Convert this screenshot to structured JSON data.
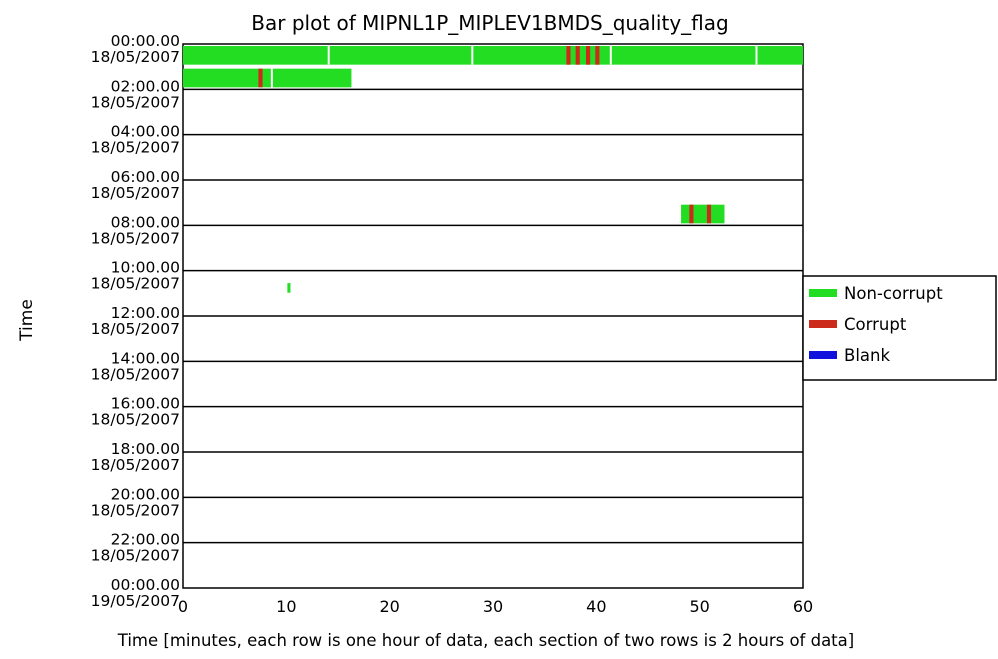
{
  "chart_data": {
    "type": "bar",
    "title": "Bar plot of MIPNL1P_MIPLEV1BMDS_quality_flag",
    "xlabel": "Time [minutes, each row is one hour of data, each section of two rows is 2 hours of data]",
    "ylabel": "Time",
    "xlim": [
      0,
      60
    ],
    "x_ticks": [
      "0",
      "10",
      "20",
      "30",
      "40",
      "50",
      "60"
    ],
    "y_tick_labels": [
      {
        "time": "00:00.00",
        "date": "18/05/2007"
      },
      {
        "time": "02:00.00",
        "date": "18/05/2007"
      },
      {
        "time": "04:00.00",
        "date": "18/05/2007"
      },
      {
        "time": "06:00.00",
        "date": "18/05/2007"
      },
      {
        "time": "08:00.00",
        "date": "18/05/2007"
      },
      {
        "time": "10:00.00",
        "date": "18/05/2007"
      },
      {
        "time": "12:00.00",
        "date": "18/05/2007"
      },
      {
        "time": "14:00.00",
        "date": "18/05/2007"
      },
      {
        "time": "16:00.00",
        "date": "18/05/2007"
      },
      {
        "time": "18:00.00",
        "date": "18/05/2007"
      },
      {
        "time": "20:00.00",
        "date": "18/05/2007"
      },
      {
        "time": "22:00.00",
        "date": "18/05/2007"
      },
      {
        "time": "00:00.00",
        "date": "19/05/2007"
      }
    ],
    "legend": {
      "placement": "right",
      "entries": [
        {
          "label": "Non-corrupt",
          "color": "#22dd22"
        },
        {
          "label": "Corrupt",
          "color": "#cc2a1a"
        },
        {
          "label": "Blank",
          "color": "#1111dd"
        }
      ]
    },
    "rows": [
      {
        "hour": 0,
        "segments": [
          {
            "start": 0,
            "end": 60,
            "status": "Non-corrupt"
          },
          {
            "start": 37.1,
            "end": 37.5,
            "status": "Corrupt"
          },
          {
            "start": 38.0,
            "end": 38.4,
            "status": "Corrupt"
          },
          {
            "start": 39.0,
            "end": 39.4,
            "status": "Corrupt"
          },
          {
            "start": 39.9,
            "end": 40.3,
            "status": "Corrupt"
          }
        ],
        "gaps": [
          14.1,
          28.0,
          41.4,
          55.5
        ]
      },
      {
        "hour": 1,
        "segments": [
          {
            "start": 0,
            "end": 16.3,
            "status": "Non-corrupt"
          },
          {
            "start": 7.3,
            "end": 7.7,
            "status": "Corrupt"
          }
        ],
        "gaps": [
          8.6
        ]
      },
      {
        "hour": 7,
        "segments": [
          {
            "start": 48.2,
            "end": 52.4,
            "status": "Non-corrupt"
          },
          {
            "start": 49.0,
            "end": 49.4,
            "status": "Corrupt"
          },
          {
            "start": 50.7,
            "end": 51.1,
            "status": "Corrupt"
          }
        ],
        "gaps": []
      },
      {
        "hour": 10,
        "segments": [
          {
            "start": 10.1,
            "end": 10.4,
            "status": "Non-corrupt",
            "partial": true
          }
        ],
        "gaps": []
      }
    ]
  }
}
